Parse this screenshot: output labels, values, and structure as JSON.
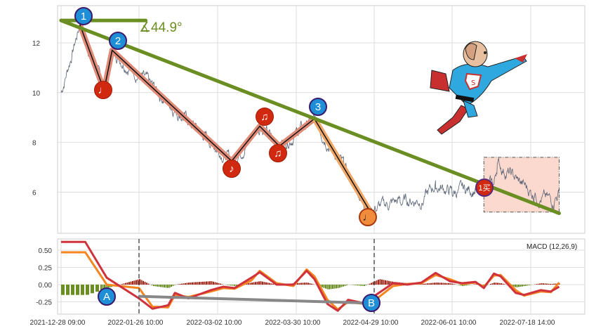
{
  "chart_data": [
    {
      "type": "line",
      "yticks": [
        6,
        8,
        10,
        12
      ],
      "ylim": [
        4.6,
        13.4
      ],
      "grid": true,
      "price": [
        [
          "2021-12-28",
          10.0
        ],
        [
          "2022-01-04",
          12.73
        ],
        [
          "2022-01-13",
          10.1
        ],
        [
          "2022-01-16",
          11.7
        ],
        [
          "2022-03-07",
          7.25
        ],
        [
          "2022-03-17",
          8.65
        ],
        [
          "2022-03-24",
          7.85
        ],
        [
          "2022-04-06",
          8.95
        ],
        [
          "2022-04-27",
          5.3
        ],
        [
          "2022-05-10",
          5.65
        ],
        [
          "2022-05-20",
          5.7
        ],
        [
          "2022-05-25",
          6.3
        ],
        [
          "2022-06-01",
          6.0
        ],
        [
          "2022-06-20",
          6.2
        ],
        [
          "2022-06-26",
          6.3
        ],
        [
          "2022-06-28",
          7.1
        ],
        [
          "2022-07-10",
          6.5
        ],
        [
          "2022-07-20",
          5.9
        ],
        [
          "2022-08-01",
          5.6
        ],
        [
          "2022-08-04",
          6.0
        ]
      ],
      "zigzag_up": [
        [
          "2022-01-04",
          12.73
        ],
        [
          "2022-01-13",
          10.1
        ],
        [
          "2022-01-16",
          11.7
        ],
        [
          "2022-03-07",
          7.25
        ],
        [
          "2022-03-17",
          8.65
        ],
        [
          "2022-03-24",
          7.85
        ],
        [
          "2022-04-06",
          8.95
        ]
      ],
      "zigzag_down": [
        [
          "2022-04-06",
          8.95
        ],
        [
          "2022-04-27",
          5.3
        ]
      ],
      "trendline": [
        [
          "2021-12-28",
          12.9
        ],
        [
          "2022-08-04",
          5.15
        ]
      ],
      "horizontal_line": [
        [
          "2021-12-28",
          12.9
        ],
        [
          "2022-01-29",
          12.9
        ]
      ],
      "angle_label": "∡44.9°",
      "box": {
        "from": "2022-06-20",
        "to": "2022-08-04",
        "low": 5.2,
        "high": 7.4
      },
      "markers": {
        "pivots": [
          "1",
          "2",
          "3"
        ],
        "notes": [
          "♩",
          "♪",
          "♫",
          "♫"
        ],
        "end_note": "♩",
        "buy": "1买"
      },
      "colors": {
        "price": "#5a6475",
        "trend": "#6b8e23",
        "zigzag_up": "#e08a78",
        "zigzag_down": "#f0a868"
      }
    },
    {
      "type": "line",
      "legend": "MACD (12,26,9)",
      "yticks": [
        -0.25,
        0.0,
        0.25,
        0.5
      ],
      "ytick_labels": [
        "-0.25",
        "0.00",
        "0.25",
        "0.50"
      ],
      "ylim": [
        -0.42,
        0.68
      ],
      "dates": [
        "2021-12-28",
        "2022-01-06",
        "2022-01-14",
        "2022-01-26",
        "2022-02-01",
        "2022-02-08",
        "2022-02-11",
        "2022-02-17",
        "2022-02-27",
        "2022-03-04",
        "2022-03-08",
        "2022-03-14",
        "2022-03-17",
        "2022-03-23",
        "2022-03-29",
        "2022-04-03",
        "2022-04-06",
        "2022-04-11",
        "2022-04-15",
        "2022-04-19",
        "2022-04-25",
        "2022-05-01",
        "2022-05-07",
        "2022-05-13",
        "2022-05-19",
        "2022-05-25",
        "2022-05-31",
        "2022-06-07",
        "2022-06-15",
        "2022-06-20",
        "2022-06-26",
        "2022-06-30",
        "2022-07-09",
        "2022-07-14",
        "2022-07-24",
        "2022-07-30",
        "2022-08-04"
      ],
      "dif": [
        0.62,
        0.62,
        0.1,
        -0.2,
        -0.35,
        -0.3,
        -0.12,
        -0.2,
        -0.08,
        -0.03,
        -0.05,
        0.1,
        0.18,
        0.0,
        0.0,
        0.2,
        0.08,
        -0.28,
        -0.38,
        -0.22,
        -0.27,
        -0.12,
        0.02,
        0.0,
        0.03,
        0.17,
        0.05,
        0.02,
        0.04,
        -0.05,
        0.16,
        0.12,
        -0.12,
        -0.15,
        -0.08,
        -0.1,
        -0.03
      ],
      "dea": [
        0.47,
        0.47,
        0.0,
        -0.05,
        -0.32,
        -0.33,
        -0.15,
        -0.18,
        -0.1,
        -0.05,
        -0.06,
        0.06,
        0.2,
        0.02,
        -0.02,
        0.22,
        0.12,
        -0.22,
        -0.36,
        -0.25,
        -0.28,
        -0.18,
        -0.02,
        0.01,
        0.02,
        0.14,
        0.08,
        0.01,
        0.03,
        -0.03,
        0.13,
        0.14,
        -0.08,
        -0.16,
        -0.1,
        -0.11,
        0.03
      ],
      "histogram": [
        -0.15,
        -0.15,
        -0.05,
        0.08,
        -0.02,
        -0.05,
        0.0,
        0.03,
        0.05,
        0.0,
        -0.02,
        0.03,
        0.05,
        0.0,
        0.02,
        0.03,
        0.0,
        -0.07,
        -0.05,
        0.0,
        -0.02,
        0.08,
        0.04,
        0.02,
        0.01,
        0.03,
        0.02,
        -0.02,
        0.01,
        -0.02,
        0.03,
        0.02,
        -0.04,
        -0.02,
        0.02,
        0.01,
        0.02
      ],
      "divergence": {
        "from": [
          "2022-01-26",
          -0.17
        ],
        "to": [
          "2022-04-29",
          -0.27
        ],
        "labels": [
          "A",
          "B"
        ]
      },
      "colors": {
        "dif": "#d0323c",
        "dea": "#f5851f",
        "hist_pos": "#a0291c",
        "hist_neg": "#6b8e23",
        "divergence": "#888888"
      }
    }
  ],
  "xaxis": {
    "ticks": [
      "2021-12-28",
      "2022-01-26",
      "2022-03-02",
      "2022-03-30",
      "2022-04-29",
      "2022-06-01",
      "2022-07-18"
    ],
    "tick_labels": [
      "2021-12-28 09:00",
      "2022-01-26 10:00",
      "2022-03-02 10:00",
      "2022-03-30 10:00",
      "2022-04-29 10:00",
      "2022-06-01 10:00",
      "2022-07-18 14:00"
    ]
  }
}
